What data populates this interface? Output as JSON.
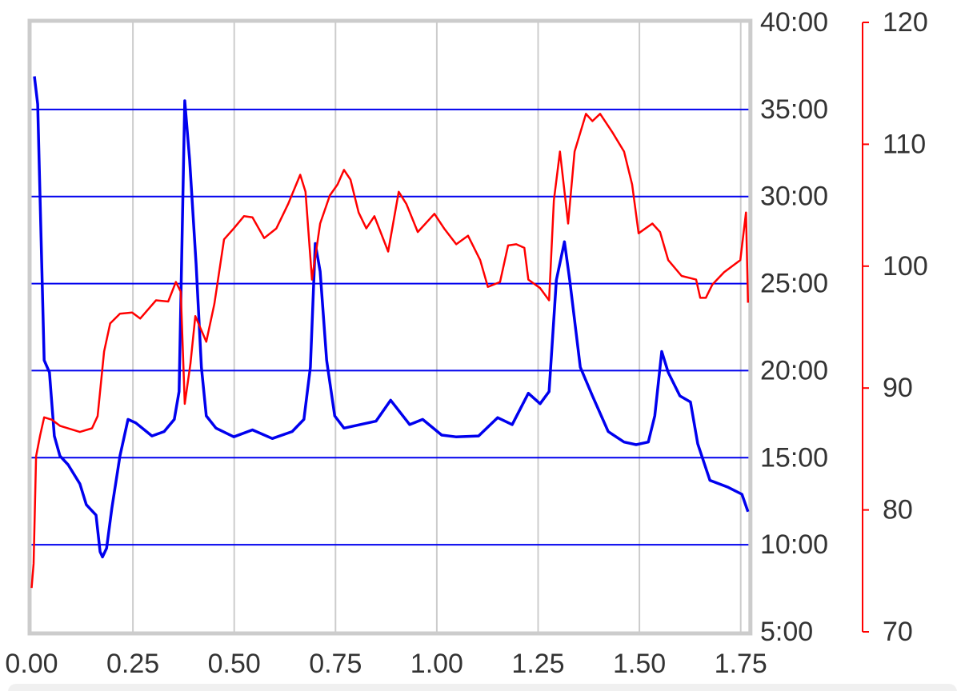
{
  "chart_data": {
    "type": "line",
    "xlim": [
      0,
      1.77
    ],
    "xticks": [
      {
        "value": 0,
        "label": "0.00"
      },
      {
        "value": 0.25,
        "label": "0.25"
      },
      {
        "value": 0.5,
        "label": "0.50"
      },
      {
        "value": 0.75,
        "label": "0.75"
      },
      {
        "value": 1,
        "label": "1.00"
      },
      {
        "value": 1.25,
        "label": "1.25"
      },
      {
        "value": 1.5,
        "label": "1.50"
      },
      {
        "value": 1.75,
        "label": "1.75"
      }
    ],
    "ylim": [
      5,
      40
    ],
    "yticks": [
      {
        "value": 5,
        "label": "5:00"
      },
      {
        "value": 10,
        "label": "10:00"
      },
      {
        "value": 15,
        "label": "15:00"
      },
      {
        "value": 20,
        "label": "20:00"
      },
      {
        "value": 25,
        "label": "25:00"
      },
      {
        "value": 30,
        "label": "30:00"
      },
      {
        "value": 35,
        "label": "35:00"
      },
      {
        "value": 40,
        "label": "40:00"
      }
    ],
    "y2lim": [
      70,
      120
    ],
    "y2ticks": [
      70,
      80,
      90,
      100,
      110,
      120
    ],
    "y2color": "#ff0000",
    "grid": true,
    "series": [
      {
        "color": "#0000ee",
        "x": [
          0.007,
          0.015,
          0.031,
          0.044,
          0.056,
          0.07,
          0.09,
          0.119,
          0.135,
          0.159,
          0.169,
          0.175,
          0.185,
          0.198,
          0.218,
          0.238,
          0.257,
          0.297,
          0.327,
          0.352,
          0.364,
          0.378,
          0.39,
          0.406,
          0.419,
          0.431,
          0.455,
          0.499,
          0.545,
          0.594,
          0.643,
          0.672,
          0.688,
          0.7,
          0.712,
          0.728,
          0.748,
          0.771,
          0.85,
          0.886,
          0.933,
          0.965,
          1.012,
          1.047,
          1.103,
          1.15,
          1.186,
          1.226,
          1.255,
          1.277,
          1.295,
          1.315,
          1.328,
          1.354,
          1.384,
          1.423,
          1.462,
          1.492,
          1.522,
          1.538,
          1.555,
          1.571,
          1.6,
          1.626,
          1.644,
          1.674,
          1.719,
          1.753,
          1.768
        ],
        "values": [
          36.9,
          35.3,
          20.6,
          19.9,
          16.25,
          15.1,
          14.6,
          13.5,
          12.3,
          11.7,
          9.6,
          9.3,
          9.8,
          12.1,
          15.1,
          17.2,
          17.0,
          16.25,
          16.5,
          17.2,
          18.8,
          35.5,
          32.1,
          26.1,
          20.2,
          17.4,
          16.7,
          16.2,
          16.6,
          16.1,
          16.5,
          17.2,
          20.2,
          27.3,
          25.7,
          20.6,
          17.4,
          16.7,
          17.1,
          18.3,
          16.9,
          17.2,
          16.3,
          16.2,
          16.25,
          17.3,
          16.9,
          18.7,
          18.1,
          18.8,
          25.2,
          27.4,
          25.2,
          20.2,
          18.55,
          16.5,
          15.9,
          15.75,
          15.9,
          17.4,
          21.1,
          19.9,
          18.55,
          18.2,
          15.8,
          13.7,
          13.3,
          12.9,
          11.9
        ]
      },
      {
        "color": "#ff0000",
        "axis": "y2",
        "x": [
          0.0,
          0.005,
          0.011,
          0.021,
          0.031,
          0.05,
          0.07,
          0.119,
          0.149,
          0.163,
          0.179,
          0.194,
          0.218,
          0.248,
          0.268,
          0.307,
          0.337,
          0.356,
          0.368,
          0.378,
          0.392,
          0.404,
          0.431,
          0.451,
          0.475,
          0.499,
          0.524,
          0.545,
          0.574,
          0.604,
          0.633,
          0.663,
          0.676,
          0.692,
          0.712,
          0.736,
          0.755,
          0.771,
          0.787,
          0.807,
          0.826,
          0.846,
          0.88,
          0.906,
          0.925,
          0.953,
          0.994,
          1.018,
          1.048,
          1.077,
          1.107,
          1.126,
          1.156,
          1.176,
          1.196,
          1.216,
          1.226,
          1.255,
          1.277,
          1.289,
          1.304,
          1.324,
          1.34,
          1.368,
          1.384,
          1.403,
          1.433,
          1.462,
          1.482,
          1.498,
          1.532,
          1.551,
          1.571,
          1.604,
          1.64,
          1.65,
          1.664,
          1.68,
          1.709,
          1.749,
          1.763,
          1.768
        ],
        "values": [
          73.6,
          75.6,
          84.4,
          86.1,
          87.6,
          87.4,
          86.9,
          86.4,
          86.7,
          87.7,
          93.0,
          95.3,
          96.1,
          96.2,
          95.7,
          97.2,
          97.1,
          98.7,
          97.9,
          88.7,
          92.0,
          95.9,
          93.8,
          96.9,
          102.2,
          103.1,
          104.1,
          104.0,
          102.3,
          103.1,
          105.1,
          107.5,
          106.1,
          98.9,
          103.5,
          105.8,
          106.7,
          107.9,
          107.1,
          104.4,
          103.1,
          104.1,
          101.2,
          106.1,
          105.1,
          102.8,
          104.3,
          103.1,
          101.8,
          102.5,
          100.5,
          98.3,
          98.7,
          101.7,
          101.8,
          101.5,
          98.9,
          98.2,
          97.2,
          105.4,
          109.4,
          103.5,
          109.4,
          112.5,
          111.9,
          112.5,
          111.0,
          109.4,
          106.7,
          102.7,
          103.5,
          102.8,
          100.5,
          99.2,
          98.9,
          97.4,
          97.4,
          98.5,
          99.5,
          100.5,
          104.4,
          97.0
        ]
      }
    ]
  }
}
